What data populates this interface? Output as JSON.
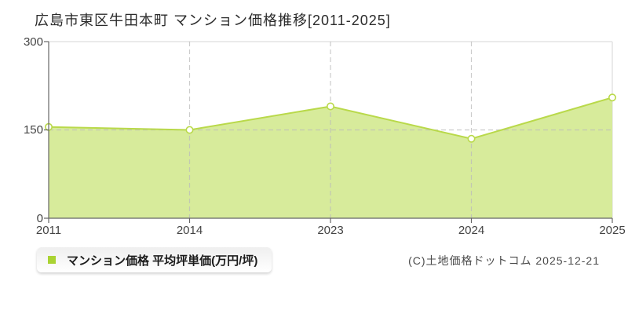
{
  "title": "広島市東区牛田本町 マンション価格推移[2011-2025]",
  "legend": {
    "label": "マンション価格 平均坪単価(万円/坪)",
    "marker_color": "#aad333"
  },
  "copyright": "(C)土地価格ドットコム 2025-12-21",
  "chart_data": {
    "type": "area",
    "title": "広島市東区牛田本町 マンション価格推移[2011-2025]",
    "categories": [
      "2011",
      "2014",
      "2023",
      "2024",
      "2025"
    ],
    "series": [
      {
        "name": "マンション価格 平均坪単価(万円/坪)",
        "values": [
          155,
          150,
          190,
          135,
          205
        ]
      }
    ],
    "xlabel": "",
    "ylabel": "",
    "ylim": [
      0,
      300
    ],
    "yticks": [
      0,
      150,
      300
    ],
    "ytick_labels": [
      "0",
      "150",
      "300"
    ],
    "grid": "dashed horizontal at y=150; dashed vertical at 2014, 2023, 2024; light solid border at top and right",
    "legend_position": "bottom-left",
    "colors": {
      "fill": "#d7eb9b",
      "line": "#b9d94a",
      "point_fill": "#ffffff",
      "grid": "#bbbbbb",
      "axis": "#666666",
      "border": "#e4e4e4"
    }
  }
}
